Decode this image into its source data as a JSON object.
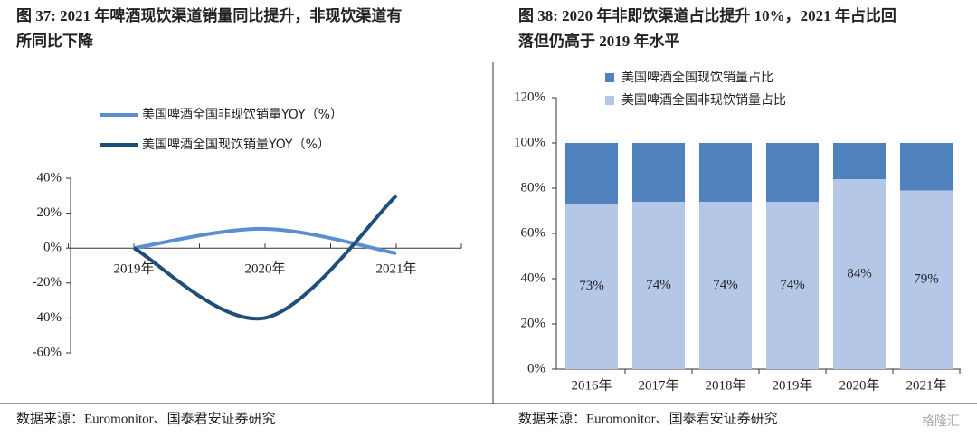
{
  "chart_data": [
    {
      "type": "line",
      "title": [
        "图 37: 2021 年啤酒现饮渠道销量同比提升，非现饮渠道有",
        "所同比下降"
      ],
      "categories": [
        "2019年",
        "2020年",
        "2021年"
      ],
      "series": [
        {
          "name": "美国啤酒全国非现饮销量YOY（%）",
          "color": "#5b8ed0",
          "values": [
            0,
            11,
            -3
          ]
        },
        {
          "name": "美国啤酒全国现饮销量YOY（%）",
          "color": "#1f4e79",
          "values": [
            0,
            -40,
            30
          ]
        }
      ],
      "ylim": [
        -60,
        40
      ],
      "yticks": [
        {
          "value": -60,
          "label": "-60%"
        },
        {
          "value": -40,
          "label": "-40%"
        },
        {
          "value": -20,
          "label": "-20%"
        },
        {
          "value": 0,
          "label": "0%"
        },
        {
          "value": 20,
          "label": "20%"
        },
        {
          "value": 40,
          "label": "40%"
        }
      ],
      "source": "数据来源：Euromonitor、国泰君安证券研究"
    },
    {
      "type": "bar",
      "stacked": true,
      "title": [
        "图 38: 2020 年非即饮渠道占比提升 10%，2021 年占比回",
        "落但仍高于 2019 年水平"
      ],
      "categories": [
        "2016年",
        "2017年",
        "2018年",
        "2019年",
        "2020年",
        "2021年"
      ],
      "series": [
        {
          "name": "美国啤酒全国非现饮销量占比",
          "color": "#b4c7e7",
          "values": [
            73,
            74,
            74,
            74,
            84,
            79
          ],
          "value_labels": [
            "73%",
            "74%",
            "74%",
            "74%",
            "84%",
            "79%"
          ]
        },
        {
          "name": "美国啤酒全国现饮销量占比",
          "color": "#4f81bd",
          "values": [
            27,
            26,
            26,
            26,
            16,
            21
          ]
        }
      ],
      "ylim": [
        0,
        120
      ],
      "yticks": [
        {
          "value": 0,
          "label": "0%"
        },
        {
          "value": 20,
          "label": "20%"
        },
        {
          "value": 40,
          "label": "40%"
        },
        {
          "value": 60,
          "label": "60%"
        },
        {
          "value": 80,
          "label": "80%"
        },
        {
          "value": 100,
          "label": "100%"
        },
        {
          "value": 120,
          "label": "120%"
        }
      ],
      "source": "数据来源：Euromonitor、国泰君安证券研究"
    }
  ],
  "watermark": "格隆汇"
}
